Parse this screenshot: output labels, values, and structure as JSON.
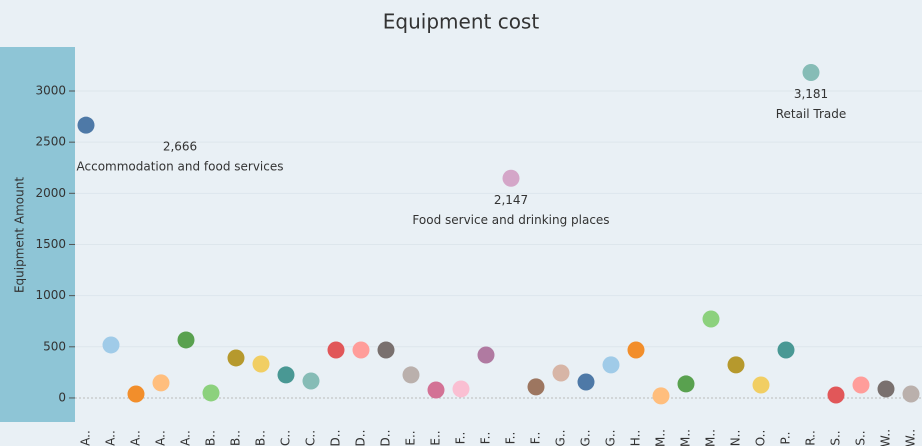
{
  "chart_data": {
    "type": "scatter",
    "title": "Equipment cost",
    "y_label": "Equipment Amount",
    "categories": [
      "A..",
      "A..",
      "A..",
      "A..",
      "A..",
      "B..",
      "B..",
      "B..",
      "C..",
      "C..",
      "D..",
      "D..",
      "D..",
      "E..",
      "E..",
      "F..",
      "F..",
      "F..",
      "F..",
      "G..",
      "G..",
      "G..",
      "H..",
      "M..",
      "M..",
      "M..",
      "N..",
      "O..",
      "P..",
      "R..",
      "S..",
      "S..",
      "W..",
      "W.."
    ],
    "values": [
      2666,
      518,
      39,
      147,
      567,
      49,
      391,
      332,
      225,
      166,
      469,
      469,
      469,
      225,
      78,
      88,
      420,
      2147,
      108,
      244,
      156,
      323,
      469,
      20,
      137,
      772,
      323,
      127,
      469,
      3181,
      29,
      127,
      88,
      39
    ],
    "value_labels": [
      "2,666",
      null,
      null,
      null,
      null,
      null,
      null,
      null,
      null,
      null,
      null,
      null,
      null,
      null,
      null,
      null,
      null,
      "2,147",
      null,
      null,
      null,
      null,
      null,
      null,
      null,
      null,
      null,
      null,
      null,
      "3,181",
      null,
      null,
      null,
      null
    ],
    "annotations": [
      "Accommodation and food services",
      null,
      null,
      null,
      null,
      null,
      null,
      null,
      null,
      null,
      null,
      null,
      null,
      null,
      null,
      null,
      null,
      "Food service and drinking places",
      null,
      null,
      null,
      null,
      null,
      null,
      null,
      null,
      null,
      null,
      null,
      "Retail Trade",
      null,
      null,
      null,
      null
    ],
    "colors": [
      "#4e79a7",
      "#a0cbe8",
      "#f28e2b",
      "#ffbe7d",
      "#59a14f",
      "#8cd17d",
      "#b6992d",
      "#f1ce63",
      "#499894",
      "#86bcb6",
      "#e15759",
      "#ff9d9a",
      "#79706e",
      "#bab0ac",
      "#d37295",
      "#fabfd2",
      "#b07aa1",
      "#d4a6c8",
      "#9d7660",
      "#d7b5a6",
      "#4e79a7",
      "#a0cbe8",
      "#f28e2b",
      "#ffbe7d",
      "#59a14f",
      "#8cd17d",
      "#b6992d",
      "#f1ce63",
      "#499894",
      "#86bcb6",
      "#e15759",
      "#ff9d9a",
      "#79706e",
      "#bab0ac"
    ],
    "ylim": [
      -235,
      3430
    ],
    "yticks": [
      0,
      500,
      1000,
      1500,
      2000,
      2500,
      3000
    ],
    "grid": true
  }
}
